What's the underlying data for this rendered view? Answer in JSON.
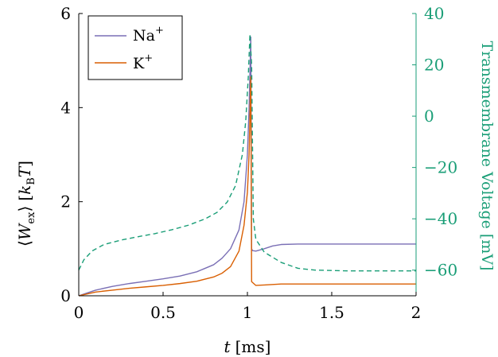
{
  "colors": {
    "na": "#7a6fb5",
    "k": "#d95f02",
    "voltage": "#1a9e77",
    "axis": "#000000"
  },
  "labels": {
    "x_var": "t",
    "x_unit": "[ms]",
    "y_left_open": "⟨",
    "y_left_var": "W",
    "y_left_sub": "ex",
    "y_left_close": "⟩",
    "y_left_unit_open": "[",
    "y_left_unit_var": "k",
    "y_left_unit_sub": "B",
    "y_left_unit_T": "T",
    "y_left_unit_close": "]",
    "y_right": "Transmembrane Voltage [mV]"
  },
  "chart_data": {
    "type": "line",
    "xlabel": "t [ms]",
    "ylabel": "⟨W_ex⟩ [k_B T]",
    "y2label": "Transmembrane Voltage [mV]",
    "xlim": [
      0,
      2
    ],
    "ylim": [
      0,
      6
    ],
    "y2lim": [
      -70,
      40
    ],
    "x_ticks": [
      0,
      0.5,
      1,
      1.5,
      2
    ],
    "x_tick_labels": [
      "0",
      "0.5",
      "1",
      "1.5",
      "2"
    ],
    "y_ticks": [
      0,
      2,
      4,
      6
    ],
    "y_tick_labels": [
      "0",
      "2",
      "4",
      "6"
    ],
    "y2_ticks": [
      -60,
      -40,
      -20,
      0,
      20,
      40
    ],
    "y2_tick_labels": [
      "−60",
      "−40",
      "−20",
      "0",
      "20",
      "40"
    ],
    "legend_position": "top-left",
    "series": [
      {
        "name": "Na",
        "name_sup": "+",
        "axis": "left",
        "style": "solid",
        "points": [
          [
            0,
            0
          ],
          [
            0.05,
            0.06
          ],
          [
            0.1,
            0.12
          ],
          [
            0.2,
            0.2
          ],
          [
            0.3,
            0.26
          ],
          [
            0.4,
            0.31
          ],
          [
            0.5,
            0.36
          ],
          [
            0.6,
            0.42
          ],
          [
            0.7,
            0.51
          ],
          [
            0.8,
            0.66
          ],
          [
            0.85,
            0.8
          ],
          [
            0.9,
            1.0
          ],
          [
            0.95,
            1.4
          ],
          [
            0.98,
            2.0
          ],
          [
            1.0,
            3.0
          ],
          [
            1.01,
            4.0
          ],
          [
            1.02,
            5.5
          ],
          [
            1.025,
            1.0
          ],
          [
            1.03,
            0.96
          ],
          [
            1.05,
            0.95
          ],
          [
            1.1,
            1.0
          ],
          [
            1.15,
            1.06
          ],
          [
            1.2,
            1.09
          ],
          [
            1.3,
            1.1
          ],
          [
            1.5,
            1.1
          ],
          [
            2.0,
            1.1
          ]
        ]
      },
      {
        "name": "K",
        "name_sup": "+",
        "axis": "left",
        "style": "solid",
        "points": [
          [
            0,
            0
          ],
          [
            0.05,
            0.04
          ],
          [
            0.1,
            0.08
          ],
          [
            0.2,
            0.12
          ],
          [
            0.3,
            0.16
          ],
          [
            0.4,
            0.19
          ],
          [
            0.5,
            0.22
          ],
          [
            0.6,
            0.26
          ],
          [
            0.7,
            0.31
          ],
          [
            0.8,
            0.4
          ],
          [
            0.85,
            0.48
          ],
          [
            0.9,
            0.62
          ],
          [
            0.95,
            0.95
          ],
          [
            0.98,
            1.5
          ],
          [
            1.0,
            2.2
          ],
          [
            1.01,
            3.0
          ],
          [
            1.02,
            4.65
          ],
          [
            1.025,
            0.3
          ],
          [
            1.05,
            0.22
          ],
          [
            1.1,
            0.23
          ],
          [
            1.2,
            0.25
          ],
          [
            1.5,
            0.25
          ],
          [
            2.0,
            0.25
          ]
        ]
      },
      {
        "name": "Transmembrane Voltage",
        "axis": "right",
        "style": "dashed",
        "points": [
          [
            0,
            -60
          ],
          [
            0.03,
            -56
          ],
          [
            0.08,
            -52.5
          ],
          [
            0.15,
            -50
          ],
          [
            0.25,
            -48.3
          ],
          [
            0.35,
            -47
          ],
          [
            0.45,
            -45.8
          ],
          [
            0.55,
            -44.3
          ],
          [
            0.65,
            -42.5
          ],
          [
            0.75,
            -40
          ],
          [
            0.82,
            -37.5
          ],
          [
            0.88,
            -33.5
          ],
          [
            0.93,
            -27
          ],
          [
            0.97,
            -15
          ],
          [
            0.99,
            -2
          ],
          [
            1.005,
            15
          ],
          [
            1.015,
            32
          ],
          [
            1.025,
            20
          ],
          [
            1.035,
            -40
          ],
          [
            1.05,
            -48
          ],
          [
            1.1,
            -53
          ],
          [
            1.2,
            -57
          ],
          [
            1.3,
            -59.3
          ],
          [
            1.4,
            -60
          ],
          [
            1.6,
            -60.3
          ],
          [
            2.0,
            -60.3
          ]
        ]
      }
    ]
  }
}
